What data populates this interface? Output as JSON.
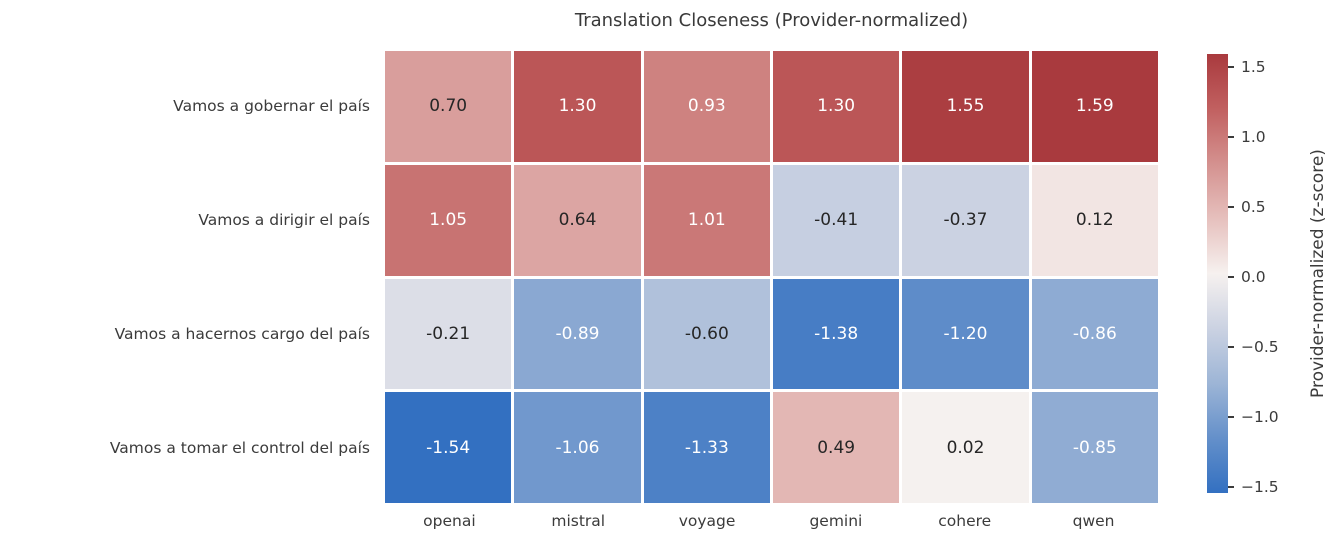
{
  "title": "Translation Closeness (Provider-normalized)",
  "chart_data": {
    "type": "heatmap",
    "title": "Translation Closeness (Provider-normalized)",
    "rows": [
      "Vamos a gobernar el país",
      "Vamos a dirigir el país",
      "Vamos a hacernos cargo del país",
      "Vamos a tomar el control del país"
    ],
    "columns": [
      "openai",
      "mistral",
      "voyage",
      "gemini",
      "cohere",
      "qwen"
    ],
    "values": [
      [
        0.7,
        1.3,
        0.93,
        1.3,
        1.55,
        1.59
      ],
      [
        1.05,
        0.64,
        1.01,
        -0.41,
        -0.37,
        0.12
      ],
      [
        -0.21,
        -0.89,
        -0.6,
        -1.38,
        -1.2,
        -0.86
      ],
      [
        -1.54,
        -1.06,
        -1.33,
        0.49,
        0.02,
        -0.85
      ]
    ],
    "value_decimals": 2,
    "vmin": -1.54,
    "vmax": 1.59,
    "colorbar": {
      "label": "Provider-normalized (z-score)",
      "ticks": [
        1.5,
        1.0,
        0.5,
        0.0,
        -0.5,
        -1.0,
        -1.5
      ],
      "tick_labels": [
        "1.5",
        "1.0",
        "0.5",
        "0.0",
        "−0.5",
        "−1.0",
        "−1.5"
      ]
    },
    "colormap": {
      "name": "vlag-blue-white-red",
      "stops": [
        [
          0.0,
          "#3370c1"
        ],
        [
          0.125,
          "#6490ca"
        ],
        [
          0.25,
          "#9db5d6"
        ],
        [
          0.375,
          "#cbd2e2"
        ],
        [
          0.5,
          "#f6f1ef"
        ],
        [
          0.625,
          "#e6c0bd"
        ],
        [
          0.75,
          "#d4918f"
        ],
        [
          0.875,
          "#c16060"
        ],
        [
          1.0,
          "#a93a3e"
        ]
      ]
    },
    "annotation_colors": {
      "dark": "#262626",
      "light": "#ffffff",
      "luminance_threshold": 0.408
    },
    "grid_line_color": "#ffffff",
    "background_color": "#ffffff"
  }
}
